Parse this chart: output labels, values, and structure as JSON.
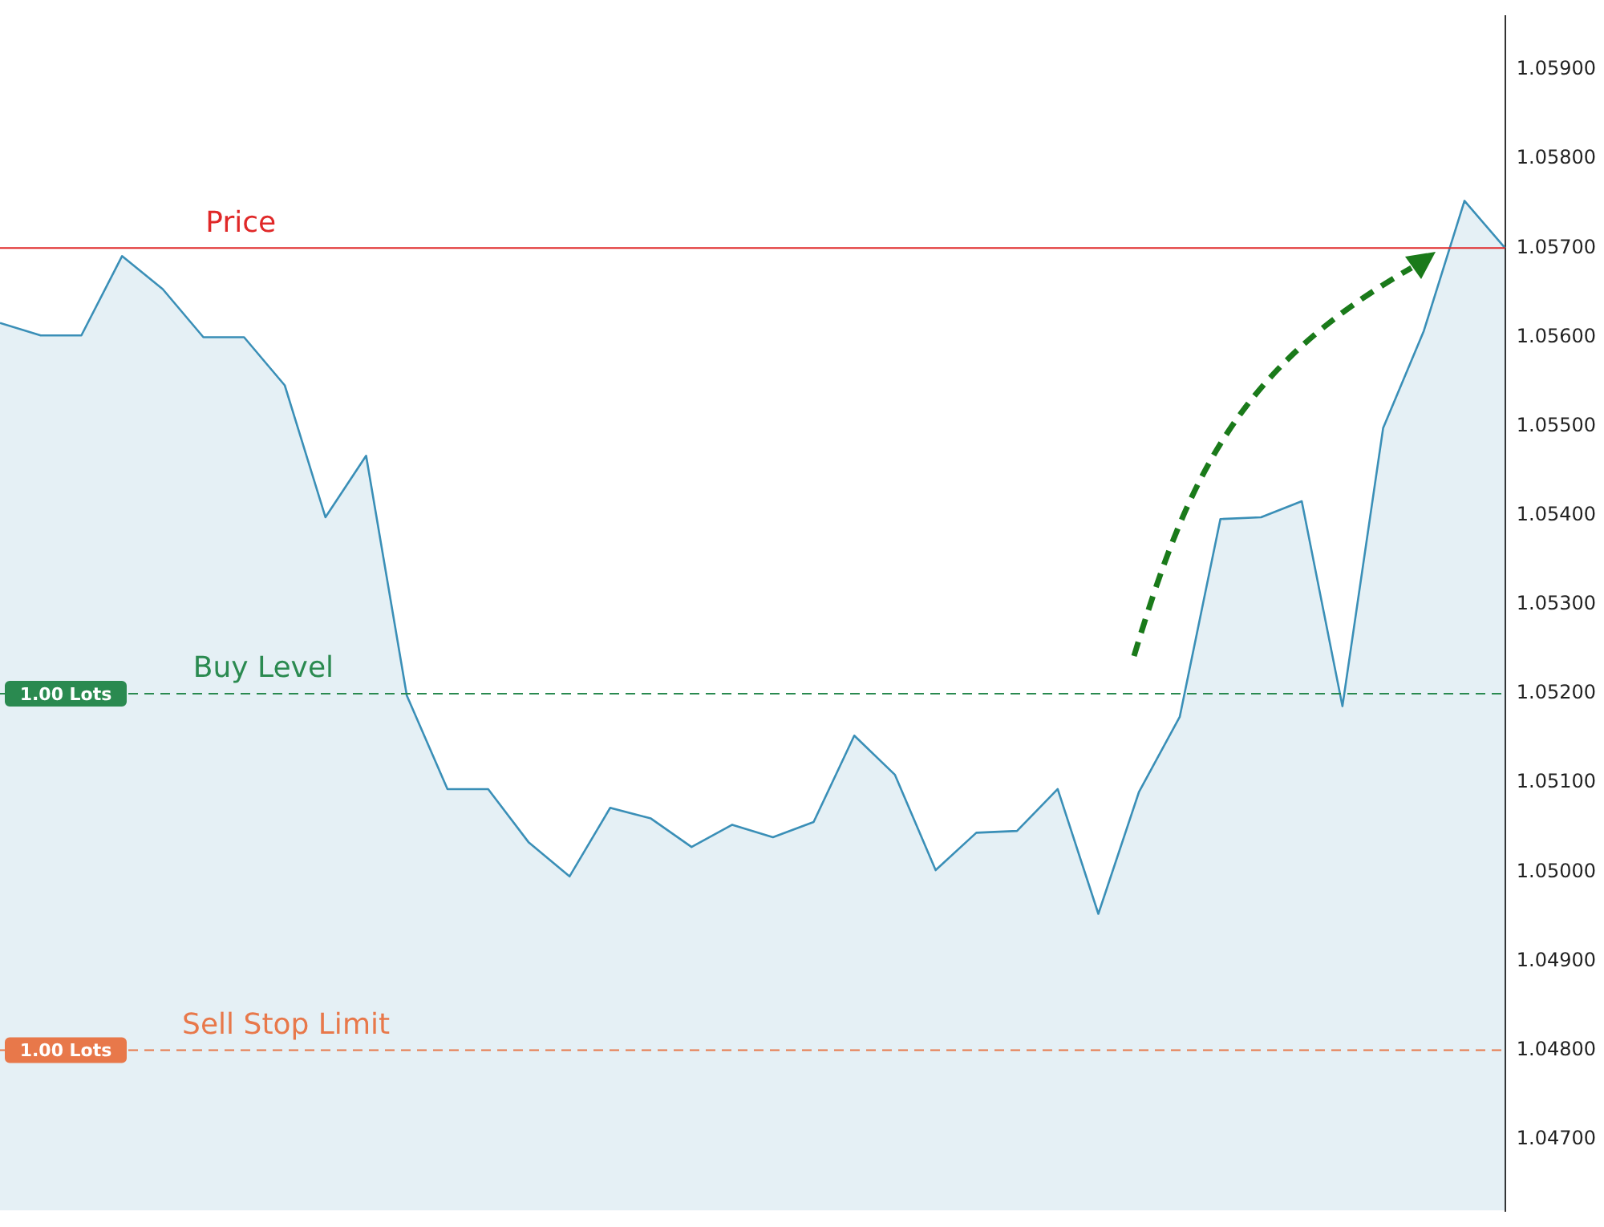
{
  "chart_data": {
    "type": "area",
    "categories": [
      null,
      null,
      null,
      null,
      null,
      null,
      null,
      null,
      null,
      null,
      null,
      null,
      null,
      null,
      null,
      null,
      null,
      null,
      null,
      null,
      null,
      null,
      null,
      null,
      null,
      null,
      null,
      null,
      null,
      null,
      null,
      null,
      null,
      null,
      null,
      null,
      null,
      null
    ],
    "series": [
      {
        "color": "#3a8fb7",
        "values": [
          1.05616,
          1.05602,
          1.05602,
          1.05691,
          1.05654,
          1.056,
          1.056,
          1.05546,
          1.05398,
          1.05467,
          1.05198,
          1.05093,
          1.05093,
          1.05033,
          1.04995,
          1.05072,
          1.0506,
          1.05028,
          1.05053,
          1.05039,
          1.05056,
          1.05153,
          1.05109,
          1.05002,
          1.05044,
          1.05046,
          1.05093,
          1.04953,
          1.0509,
          1.05174,
          1.05396,
          1.05398,
          1.05416,
          1.05186,
          1.05498,
          1.05607,
          1.05753,
          1.057
        ]
      }
    ],
    "ylim": [
      1.0462,
      1.0596
    ],
    "yticks": [
      {
        "value": 1.047,
        "label": "1.04700"
      },
      {
        "value": 1.048,
        "label": "1.04800"
      },
      {
        "value": 1.049,
        "label": "1.04900"
      },
      {
        "value": 1.05,
        "label": "1.05000"
      },
      {
        "value": 1.051,
        "label": "1.05100"
      },
      {
        "value": 1.052,
        "label": "1.05200"
      },
      {
        "value": 1.053,
        "label": "1.05300"
      },
      {
        "value": 1.054,
        "label": "1.05400"
      },
      {
        "value": 1.055,
        "label": "1.05500"
      },
      {
        "value": 1.056,
        "label": "1.05600"
      },
      {
        "value": 1.057,
        "label": "1.05700"
      },
      {
        "value": 1.058,
        "label": "1.05800"
      },
      {
        "value": 1.059,
        "label": "1.05900"
      }
    ],
    "ref_lines": [
      {
        "axis": "y",
        "value": 1.057,
        "label": "Price",
        "color": "#e02828",
        "line_style": "solid"
      },
      {
        "axis": "y",
        "value": 1.052,
        "label": "Buy Level",
        "color": "#2a8a50",
        "line_style": "dashed"
      },
      {
        "axis": "y",
        "value": 1.048,
        "label": "Sell Stop Limit",
        "color": "#e8784a",
        "line_style": "dashed"
      }
    ],
    "annotations": [
      {
        "text": "1.00 Lots",
        "y": 1.052
      },
      {
        "text": "1.00 Lots",
        "y": 1.048
      }
    ],
    "tick_labels": "y",
    "grid": false,
    "legend": false,
    "marker": "none"
  }
}
